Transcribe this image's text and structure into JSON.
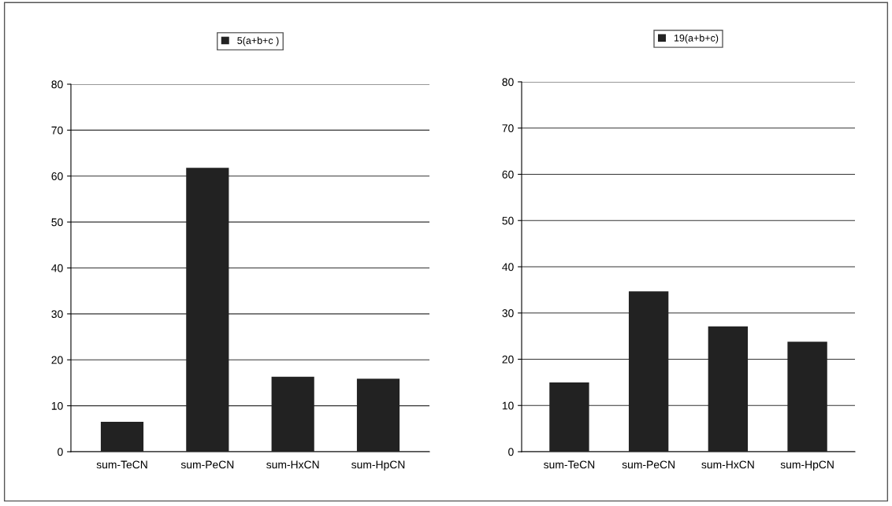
{
  "chart_data": [
    {
      "type": "bar",
      "categories": [
        "sum-TeCN",
        "sum-PeCN",
        "sum-HxCN",
        "sum-HpCN"
      ],
      "series": [
        {
          "name": "5(a+b+c )",
          "color": "#222222",
          "values": [
            6.5,
            61.8,
            16.3,
            15.9
          ]
        }
      ],
      "ylim": [
        0,
        80
      ],
      "yticks": [
        0,
        10,
        20,
        30,
        40,
        50,
        60,
        70,
        80
      ],
      "grid": "y",
      "legend": "top"
    },
    {
      "type": "bar",
      "categories": [
        "sum-TeCN",
        "sum-PeCN",
        "sum-HxCN",
        "sum-HpCN"
      ],
      "series": [
        {
          "name": "19(a+b+c)",
          "color": "#222222",
          "values": [
            15.0,
            34.7,
            27.1,
            23.8
          ]
        }
      ],
      "ylim": [
        0,
        80
      ],
      "yticks": [
        0,
        10,
        20,
        30,
        40,
        50,
        60,
        70,
        80
      ],
      "grid": "y",
      "legend": "top"
    }
  ]
}
